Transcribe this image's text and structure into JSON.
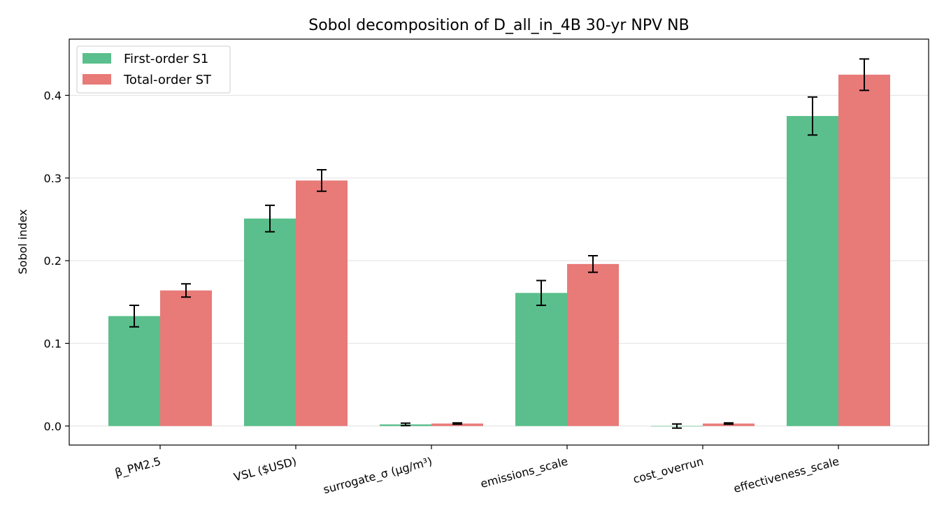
{
  "chart_data": {
    "type": "bar",
    "title": "Sobol decomposition of D_all_in_4B 30-yr NPV NB",
    "xlabel": "",
    "ylabel": "Sobol index",
    "categories": [
      "β_PM2.5",
      "VSL ($USD)",
      "surrogate_σ (µg/m³)",
      "emissions_scale",
      "cost_overrun",
      "effectiveness_scale"
    ],
    "ylim": [
      -0.023,
      0.468
    ],
    "yticks": [
      0.0,
      0.1,
      0.2,
      0.3,
      0.4
    ],
    "ytick_labels": [
      "0.0",
      "0.1",
      "0.2",
      "0.3",
      "0.4"
    ],
    "grid": "horizontal",
    "legend_position": "top-left",
    "series": [
      {
        "name": "First-order S1",
        "color": "#5abf8c",
        "values": [
          0.133,
          0.251,
          0.002,
          0.161,
          0.0,
          0.375
        ],
        "errors": [
          0.013,
          0.016,
          0.0015,
          0.015,
          0.0025,
          0.023
        ]
      },
      {
        "name": "Total-order ST",
        "color": "#e87a78",
        "values": [
          0.164,
          0.297,
          0.003,
          0.196,
          0.003,
          0.425
        ],
        "errors": [
          0.008,
          0.013,
          0.0008,
          0.01,
          0.0008,
          0.019
        ]
      }
    ]
  }
}
